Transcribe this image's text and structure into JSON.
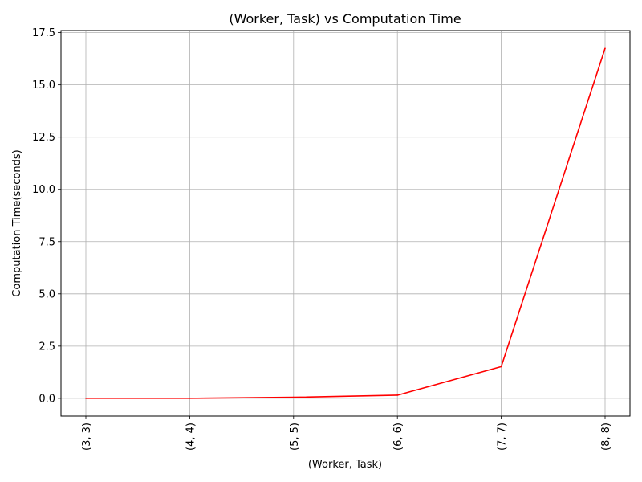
{
  "chart_data": {
    "type": "line",
    "title": "(Worker, Task) vs Computation Time",
    "xlabel": "(Worker, Task)",
    "ylabel": "Computation Time(seconds)",
    "categories": [
      "(3, 3)",
      "(4, 4)",
      "(5, 5)",
      "(6, 6)",
      "(7, 7)",
      "(8, 8)"
    ],
    "series": [
      {
        "name": "",
        "color": "#ff0000",
        "values": [
          0.0,
          0.0,
          0.05,
          0.15,
          1.52,
          16.75
        ]
      }
    ],
    "ylim": [
      -0.85,
      17.6
    ],
    "yticks": [
      "0.0",
      "2.5",
      "5.0",
      "7.5",
      "10.0",
      "12.5",
      "15.0",
      "17.5"
    ],
    "grid": true,
    "legend": "none"
  }
}
